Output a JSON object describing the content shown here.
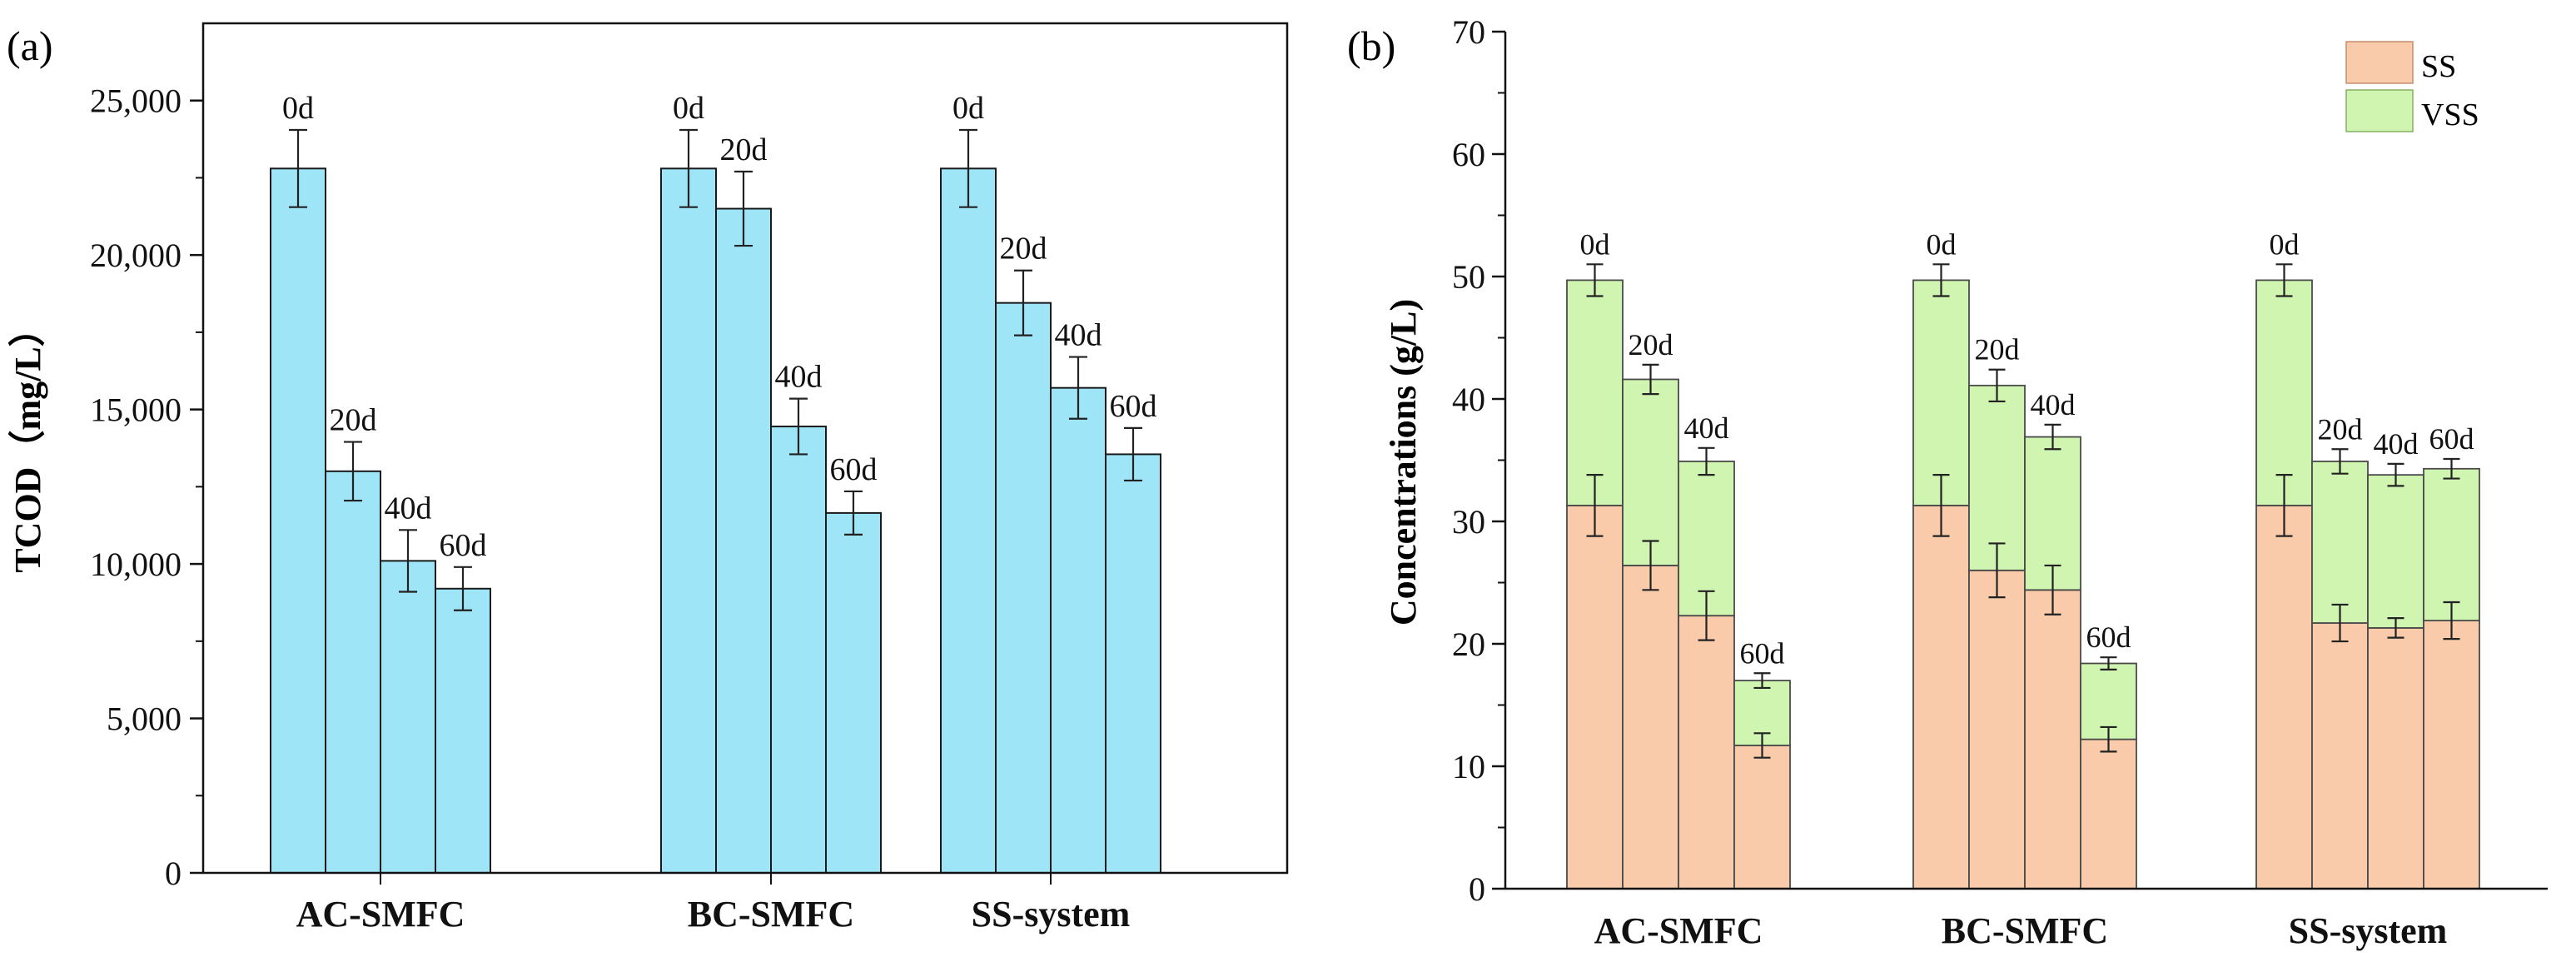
{
  "chart_data": [
    {
      "panel": "(a)",
      "type": "bar",
      "ylabel": "TCOD（mg/L）",
      "ylim": [
        0,
        27500
      ],
      "yticks": [
        0,
        5000,
        10000,
        15000,
        20000,
        25000
      ],
      "ytick_labels": [
        "0",
        "5,000",
        "10,000",
        "15,000",
        "20,000",
        "25,000"
      ],
      "color": "#9FE5F8",
      "groups": [
        {
          "label": "AC-SMFC",
          "bars": [
            {
              "day": "0d",
              "value": 22800,
              "err": 1250
            },
            {
              "day": "20d",
              "value": 13000,
              "err": 950
            },
            {
              "day": "40d",
              "value": 10100,
              "err": 1000
            },
            {
              "day": "60d",
              "value": 9200,
              "err": 700
            }
          ]
        },
        {
          "label": "BC-SMFC",
          "bars": [
            {
              "day": "0d",
              "value": 22800,
              "err": 1250
            },
            {
              "day": "20d",
              "value": 21500,
              "err": 1200
            },
            {
              "day": "40d",
              "value": 14450,
              "err": 900
            },
            {
              "day": "60d",
              "value": 11650,
              "err": 700
            }
          ]
        },
        {
          "label": "SS-system",
          "bars": [
            {
              "day": "0d",
              "value": 22800,
              "err": 1250
            },
            {
              "day": "20d",
              "value": 18450,
              "err": 1050
            },
            {
              "day": "40d",
              "value": 15700,
              "err": 1000
            },
            {
              "day": "60d",
              "value": 13550,
              "err": 850
            }
          ]
        }
      ]
    },
    {
      "panel": "(b)",
      "type": "bar",
      "stacked": true,
      "ylabel": "Concentrations (g/L)",
      "ylim": [
        0,
        70
      ],
      "yticks": [
        0,
        10,
        20,
        30,
        40,
        50,
        60,
        70
      ],
      "ytick_labels": [
        "0",
        "10",
        "20",
        "30",
        "40",
        "50",
        "60",
        "70"
      ],
      "legend": [
        {
          "name": "SS",
          "color": "#F9CBAA"
        },
        {
          "name": "VSS",
          "color": "#CFF5B0"
        }
      ],
      "groups": [
        {
          "label": "AC-SMFC",
          "bars": [
            {
              "day": "0d",
              "ss": 31.3,
              "ss_err": 2.5,
              "total": 49.7,
              "total_err": 1.3
            },
            {
              "day": "20d",
              "ss": 26.4,
              "ss_err": 2.0,
              "total": 41.6,
              "total_err": 1.2
            },
            {
              "day": "40d",
              "ss": 22.3,
              "ss_err": 2.0,
              "total": 34.9,
              "total_err": 1.1
            },
            {
              "day": "60d",
              "ss": 11.7,
              "ss_err": 1.0,
              "total": 17.0,
              "total_err": 0.6
            }
          ]
        },
        {
          "label": "BC-SMFC",
          "bars": [
            {
              "day": "0d",
              "ss": 31.3,
              "ss_err": 2.5,
              "total": 49.7,
              "total_err": 1.3
            },
            {
              "day": "20d",
              "ss": 26.0,
              "ss_err": 2.2,
              "total": 41.1,
              "total_err": 1.3
            },
            {
              "day": "40d",
              "ss": 24.4,
              "ss_err": 2.0,
              "total": 36.9,
              "total_err": 1.0
            },
            {
              "day": "60d",
              "ss": 12.2,
              "ss_err": 1.0,
              "total": 18.4,
              "total_err": 0.5
            }
          ]
        },
        {
          "label": "SS-system",
          "bars": [
            {
              "day": "0d",
              "ss": 31.3,
              "ss_err": 2.5,
              "total": 49.7,
              "total_err": 1.3
            },
            {
              "day": "20d",
              "ss": 21.7,
              "ss_err": 1.5,
              "total": 34.9,
              "total_err": 1.0
            },
            {
              "day": "40d",
              "ss": 21.3,
              "ss_err": 0.8,
              "total": 33.8,
              "total_err": 0.9
            },
            {
              "day": "60d",
              "ss": 21.9,
              "ss_err": 1.5,
              "total": 34.3,
              "total_err": 0.8
            }
          ]
        }
      ]
    }
  ]
}
